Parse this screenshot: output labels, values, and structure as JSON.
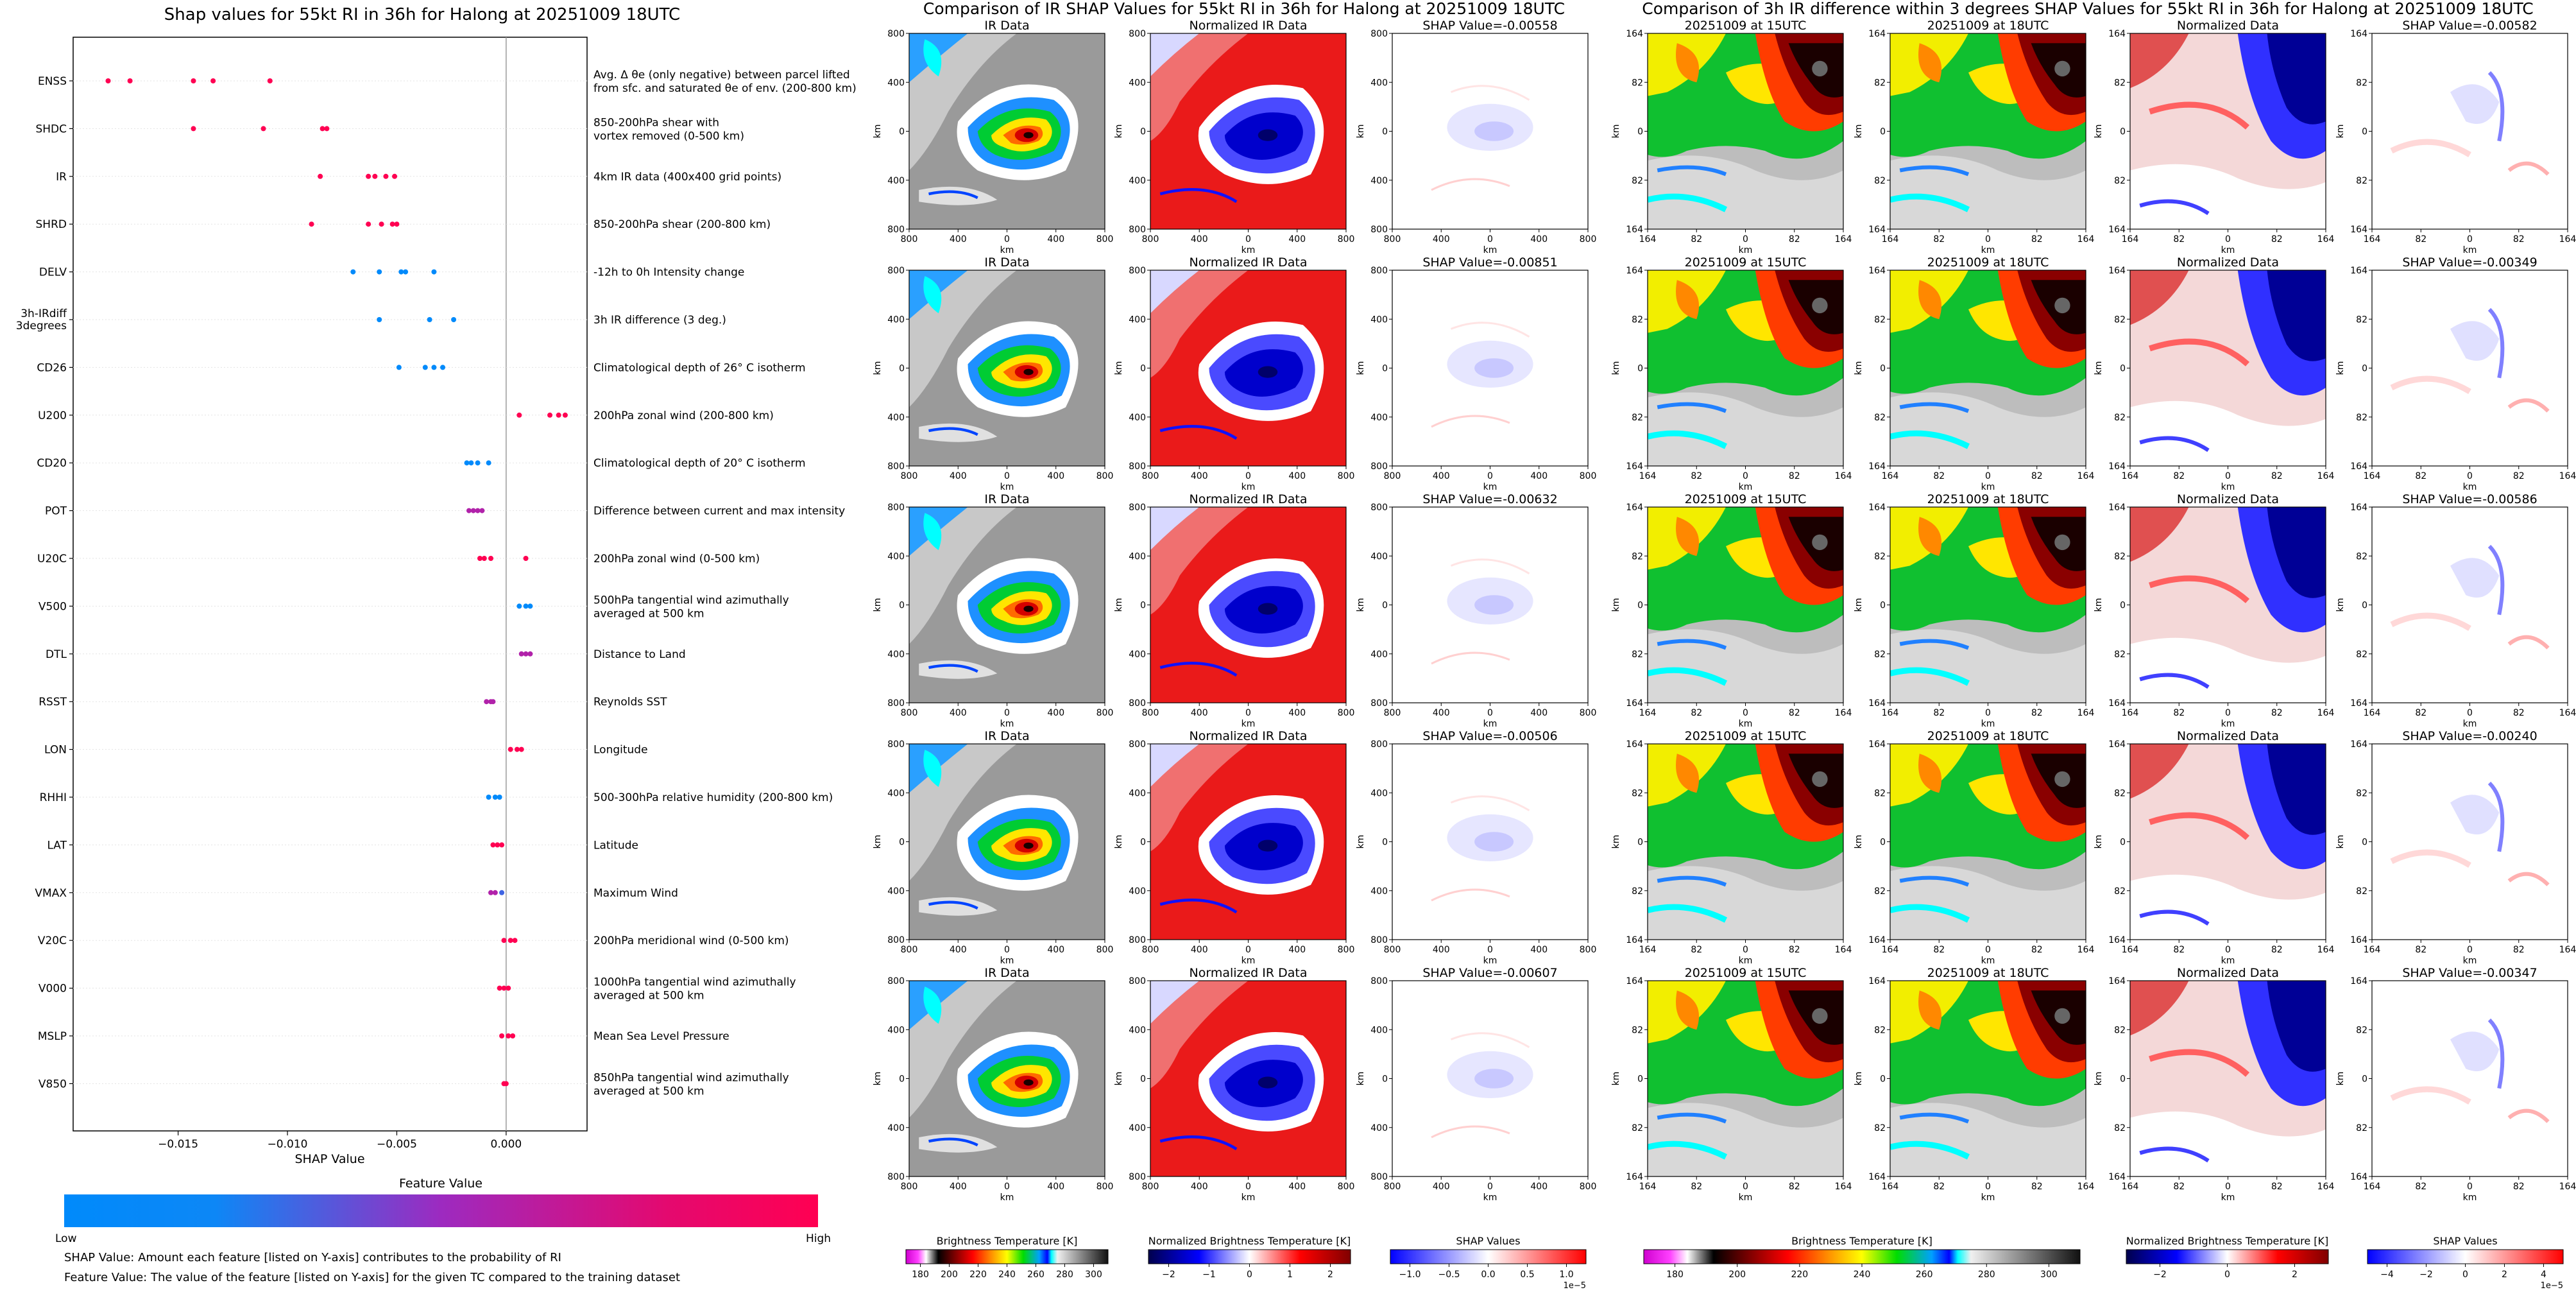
{
  "colors": {
    "low": "#008afb",
    "mid": "#9d2ac0",
    "high": "#ff0052"
  },
  "left": {
    "title": "Shap values for 55kt RI in 36h for Halong at 20251009 18UTC",
    "xlabel": "SHAP Value",
    "colorbar_title": "Feature Value",
    "low_label": "Low",
    "high_label": "High",
    "note1": "SHAP Value: Amount each feature [listed on Y-axis] contributes to the probability of RI",
    "note2": "Feature Value: The value of the feature [listed on Y-axis] for the given TC compared to the training dataset",
    "desc_row0_line1": "Avg. Δ θe (only negative) between parcel lifted",
    "desc_row0_line2": "from sfc. and saturated θe of env. (200-800 km)"
  },
  "mid": {
    "title": "Comparison of IR SHAP Values for 55kt RI in 36h for Halong at 20251009 18UTC",
    "col_titles": [
      "IR Data",
      "Normalized IR Data"
    ],
    "shap_prefix": "SHAP Value=",
    "xlabel": "km",
    "ylabel": "km",
    "ticks": [
      "800",
      "400",
      "0",
      "400",
      "800"
    ],
    "cbar_titles": [
      "Brightness Temperature [K]",
      "Normalized Brightness Temperature [K]",
      "SHAP Values"
    ],
    "cbar_ticks": [
      [
        "180",
        "200",
        "220",
        "240",
        "260",
        "280",
        "300"
      ],
      [
        "−2",
        "−1",
        "0",
        "1",
        "2"
      ],
      [
        "−1.0",
        "−0.5",
        "0.0",
        "0.5",
        "1.0"
      ]
    ],
    "cbar_scale": "1e−5",
    "shap_values": [
      "-0.00558",
      "-0.00851",
      "-0.00632",
      "-0.00506",
      "-0.00607"
    ]
  },
  "right": {
    "title": "Comparison of 3h IR difference within 3 degrees SHAP Values for 55kt RI in 36h for Halong at 20251009 18UTC",
    "col_titles": [
      "20251009 at 15UTC",
      "20251009 at 18UTC",
      "Normalized Data"
    ],
    "shap_prefix": "SHAP Value=",
    "xlabel": "km",
    "ylabel": "km",
    "ticks": [
      "164",
      "82",
      "0",
      "82",
      "164"
    ],
    "cbar_titles": [
      "Brightness Temperature [K]",
      "Normalized Brightness Temperature [K]",
      "SHAP Values"
    ],
    "cbar_ticks": [
      [
        "180",
        "200",
        "220",
        "240",
        "260",
        "280",
        "300"
      ],
      [
        "−2",
        "0",
        "2"
      ],
      [
        "−4",
        "−2",
        "0",
        "2",
        "4"
      ]
    ],
    "cbar_scale": "1e−5",
    "shap_values": [
      "-0.00582",
      "-0.00349",
      "-0.00586",
      "-0.00240",
      "-0.00347"
    ]
  },
  "chart_data": [
    {
      "type": "scatter",
      "title": "Shap values for 55kt RI in 36h for Halong at 20251009 18UTC",
      "xlabel": "SHAP Value",
      "xlim": [
        -0.0198,
        0.0037
      ],
      "x_ticks": [
        "−0.015",
        "−0.010",
        "−0.005",
        "0.000"
      ],
      "x_tick_values": [
        -0.015,
        -0.01,
        -0.005,
        0.0
      ],
      "features": [
        {
          "name": "ENSS",
          "desc": "",
          "pts": [
            -0.0182,
            -0.0172,
            -0.0143,
            -0.0134,
            -0.0108
          ],
          "fv": [
            1,
            1,
            1,
            1,
            1
          ]
        },
        {
          "name": "SHDC",
          "desc": "850-200hPa shear with|vortex removed (0-500 km)",
          "pts": [
            -0.0143,
            -0.0111,
            -0.0084,
            -0.0082
          ],
          "fv": [
            1,
            1,
            1,
            1
          ]
        },
        {
          "name": "IR",
          "desc": "4km IR data (400x400 grid points)",
          "pts": [
            -0.0085,
            -0.0063,
            -0.006,
            -0.0055,
            -0.0051
          ],
          "fv": [
            1,
            1,
            1,
            1,
            1
          ]
        },
        {
          "name": "SHRD",
          "desc": "850-200hPa shear (200-800 km)",
          "pts": [
            -0.0089,
            -0.0063,
            -0.0057,
            -0.0052,
            -0.005
          ],
          "fv": [
            1,
            1,
            1,
            1,
            1
          ]
        },
        {
          "name": "DELV",
          "desc": "-12h to 0h Intensity change",
          "pts": [
            -0.007,
            -0.0058,
            -0.0048,
            -0.0046,
            -0.0033
          ],
          "fv": [
            0,
            0,
            0,
            0,
            0
          ]
        },
        {
          "name": "3h-IRdiff|3degrees",
          "desc": "3h IR difference (3 deg.)",
          "pts": [
            -0.0058,
            -0.0035,
            -0.0024
          ],
          "fv": [
            0,
            0,
            0
          ]
        },
        {
          "name": "CD26",
          "desc": "Climatological depth of 26° C isotherm",
          "pts": [
            -0.0049,
            -0.0037,
            -0.0033,
            -0.0029
          ],
          "fv": [
            0,
            0,
            0,
            0
          ]
        },
        {
          "name": "U200",
          "desc": "200hPa zonal wind (200-800 km)",
          "pts": [
            0.0006,
            0.002,
            0.0024,
            0.0027
          ],
          "fv": [
            1,
            1,
            1,
            1
          ]
        },
        {
          "name": "CD20",
          "desc": "Climatological depth of 20° C isotherm",
          "pts": [
            -0.0018,
            -0.0016,
            -0.0013,
            -0.0008
          ],
          "fv": [
            0,
            0,
            0,
            0
          ]
        },
        {
          "name": "POT",
          "desc": "Difference between current and max intensity",
          "pts": [
            -0.0017,
            -0.0015,
            -0.0013,
            -0.0011
          ],
          "fv": [
            0.6,
            0.6,
            0.6,
            0.6
          ]
        },
        {
          "name": "U20C",
          "desc": "200hPa zonal wind (0-500 km)",
          "pts": [
            -0.0012,
            -0.001,
            -0.0007,
            0.0009
          ],
          "fv": [
            1,
            1,
            1,
            1
          ]
        },
        {
          "name": "V500",
          "desc": "500hPa tangential wind azimuthally|averaged at 500 km",
          "pts": [
            0.0006,
            0.0009,
            0.0011
          ],
          "fv": [
            0,
            0,
            0
          ]
        },
        {
          "name": "DTL",
          "desc": "Distance to Land",
          "pts": [
            0.0007,
            0.0009,
            0.0011
          ],
          "fv": [
            0.6,
            0.6,
            0.6
          ]
        },
        {
          "name": "RSST",
          "desc": "Reynolds SST",
          "pts": [
            -0.0009,
            -0.0007,
            -0.0006
          ],
          "fv": [
            0.6,
            0.6,
            0.6
          ]
        },
        {
          "name": "LON",
          "desc": "Longitude",
          "pts": [
            0.0002,
            0.0005,
            0.0007
          ],
          "fv": [
            1,
            1,
            1
          ]
        },
        {
          "name": "RHHI",
          "desc": "500-300hPa relative humidity (200-800 km)",
          "pts": [
            -0.0008,
            -0.0005,
            -0.0003
          ],
          "fv": [
            0,
            0,
            0
          ]
        },
        {
          "name": "LAT",
          "desc": "Latitude",
          "pts": [
            -0.0006,
            -0.0004,
            -0.0002
          ],
          "fv": [
            1,
            1,
            1
          ]
        },
        {
          "name": "VMAX",
          "desc": "Maximum Wind",
          "pts": [
            -0.0007,
            -0.0005,
            -0.0002
          ],
          "fv": [
            0.6,
            0.6,
            0.2
          ]
        },
        {
          "name": "V20C",
          "desc": "200hPa meridional wind (0-500 km)",
          "pts": [
            -0.0001,
            0.0002,
            0.0004
          ],
          "fv": [
            1,
            1,
            1
          ]
        },
        {
          "name": "V000",
          "desc": "1000hPa tangential wind azimuthally|averaged at 500 km",
          "pts": [
            -0.0003,
            -0.0001,
            0.0001
          ],
          "fv": [
            1,
            1,
            1
          ]
        },
        {
          "name": "MSLP",
          "desc": "Mean Sea Level Pressure",
          "pts": [
            -0.0002,
            0.0001,
            0.0003
          ],
          "fv": [
            1,
            1,
            1
          ]
        },
        {
          "name": "V850",
          "desc": "850hPa tangential wind azimuthally|averaged at 500 km",
          "pts": [
            -0.0001,
            0.0
          ],
          "fv": [
            1,
            1
          ]
        }
      ]
    }
  ]
}
